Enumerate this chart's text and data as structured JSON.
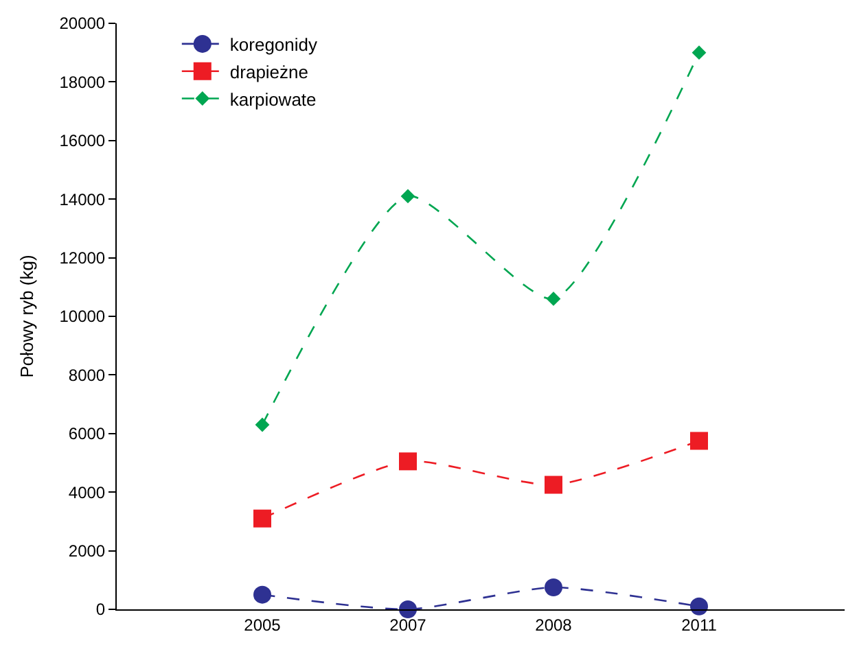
{
  "chart_data": {
    "type": "line",
    "ylabel": "Połowy ryb (kg)",
    "categories": [
      "2005",
      "2007",
      "2008",
      "2011"
    ],
    "series": [
      {
        "name": "koregonidy",
        "color": "#2e3192",
        "marker": "circle",
        "values": [
          500,
          0,
          750,
          100
        ]
      },
      {
        "name": "drapieżne",
        "color": "#ed1c24",
        "marker": "square",
        "values": [
          3100,
          5050,
          4250,
          5750
        ]
      },
      {
        "name": "karpiowate",
        "color": "#00a651",
        "marker": "diamond",
        "values": [
          6300,
          14100,
          10600,
          19000
        ]
      }
    ],
    "ylim": [
      0,
      20000
    ],
    "yticks": [
      0,
      2000,
      4000,
      6000,
      8000,
      10000,
      12000,
      14000,
      16000,
      18000,
      20000
    ],
    "legend": "top left",
    "line_style": "dashed"
  }
}
